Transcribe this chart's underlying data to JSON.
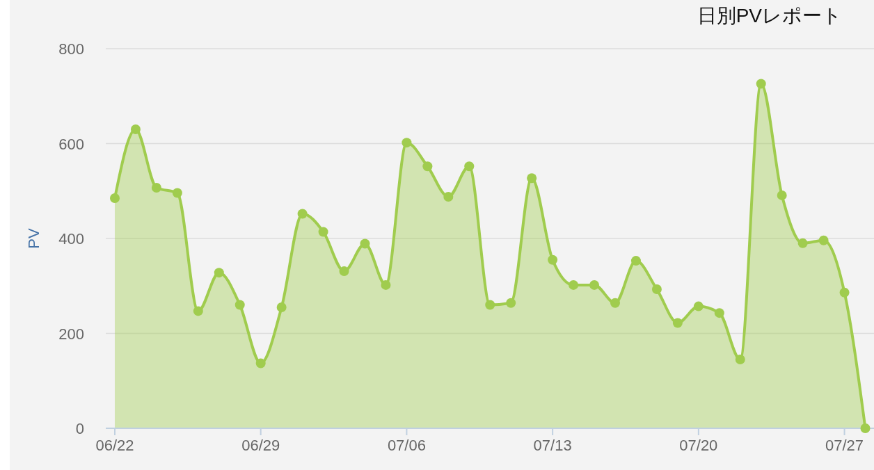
{
  "chart_data": {
    "type": "area",
    "title": "日別PVレポート",
    "ylabel": "PV",
    "x": [
      "--06-22",
      "--06-23",
      "--06-24",
      "--06-25",
      "--06-26",
      "--06-27",
      "--06-28",
      "--06-29",
      "--06-30",
      "--07-01",
      "--07-02",
      "--07-03",
      "--07-04",
      "--07-05",
      "--07-06",
      "--07-07",
      "--07-08",
      "--07-09",
      "--07-10",
      "--07-11",
      "--07-12",
      "--07-13",
      "--07-14",
      "--07-15",
      "--07-16",
      "--07-17",
      "--07-18",
      "--07-19",
      "--07-20",
      "--07-21",
      "--07-22",
      "--07-23",
      "--07-24",
      "--07-25",
      "--07-26",
      "--07-27",
      "--07-28"
    ],
    "values": [
      485,
      630,
      507,
      496,
      247,
      328,
      260,
      137,
      255,
      452,
      414,
      331,
      389,
      302,
      602,
      552,
      488,
      552,
      260,
      264,
      527,
      355,
      302,
      302,
      264,
      353,
      293,
      222,
      257,
      243,
      145,
      726,
      491,
      390,
      396,
      286,
      0
    ],
    "color": "#a0cc4e",
    "xlim": [
      "--06-21T13:36",
      "--07-28T10:00"
    ],
    "xticks": [
      {
        "value": "--06-22",
        "label": "06/22"
      },
      {
        "value": "--06-29",
        "label": "06/29"
      },
      {
        "value": "--07-06",
        "label": "07/06"
      },
      {
        "value": "--07-13",
        "label": "07/13"
      },
      {
        "value": "--07-20",
        "label": "07/20"
      },
      {
        "value": "--07-27",
        "label": "07/27"
      }
    ],
    "ylim": [
      0,
      800
    ],
    "yticks": [
      0,
      200,
      400,
      600,
      800
    ],
    "grid": "y",
    "marker": "circle"
  }
}
